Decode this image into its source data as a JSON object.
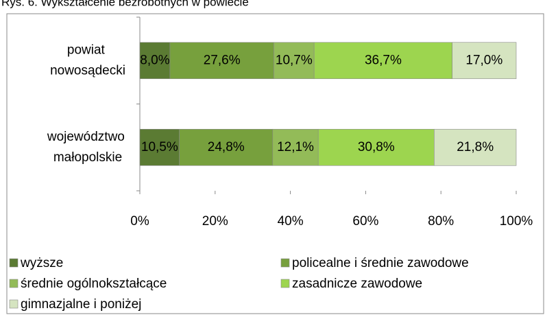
{
  "chart_data": {
    "type": "stacked-bar-horizontal",
    "title": "Rys. 6. Wykształcenie bezrobotnych w powiecie",
    "categories": [
      "powiat nowosądecki",
      "województwo małopolskie"
    ],
    "series": [
      {
        "name": "wyższe",
        "color": "#5b7b33",
        "values": [
          8.0,
          10.5
        ],
        "value_labels": [
          "8,0%",
          "10,5%"
        ]
      },
      {
        "name": "policealne i średnie zawodowe",
        "color": "#77a03d",
        "values": [
          27.6,
          24.8
        ],
        "value_labels": [
          "27,6%",
          "24,8%"
        ]
      },
      {
        "name": "średnie ogólnokształcące",
        "color": "#93bb58",
        "values": [
          10.7,
          12.1
        ],
        "value_labels": [
          "10,7%",
          "12,1%"
        ]
      },
      {
        "name": "zasadnicze zawodowe",
        "color": "#9dd54f",
        "values": [
          36.7,
          30.8
        ],
        "value_labels": [
          "36,7%",
          "30,8%"
        ]
      },
      {
        "name": "gimnazjalne i poniżej",
        "color": "#d5e4c0",
        "values": [
          17.0,
          21.8
        ],
        "value_labels": [
          "17,0%",
          "21,8%"
        ]
      }
    ],
    "xlim": [
      0,
      100
    ],
    "xticks": [
      {
        "value": 0,
        "label": "0%"
      },
      {
        "value": 20,
        "label": "20%"
      },
      {
        "value": 40,
        "label": "40%"
      },
      {
        "value": 60,
        "label": "60%"
      },
      {
        "value": 80,
        "label": "80%"
      },
      {
        "value": 100,
        "label": "100%"
      }
    ]
  }
}
